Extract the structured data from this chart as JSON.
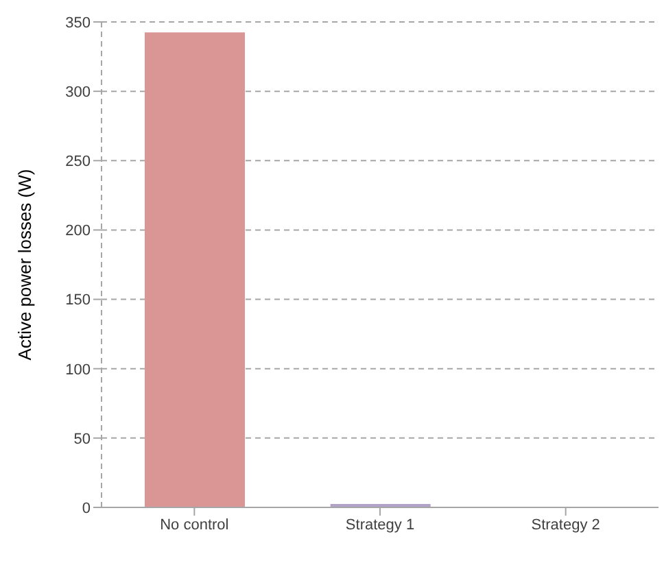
{
  "chart_data": {
    "type": "bar",
    "ylabel": "Active power losses (W)",
    "categories": [
      "No control",
      "Strategy 1",
      "Strategy 2"
    ],
    "values": [
      341,
      1,
      0
    ],
    "colors": [
      "#d99694",
      "#b3a2c7",
      "#9bbb59"
    ],
    "ylim": [
      0,
      350
    ],
    "yticks": [
      0,
      50,
      100,
      150,
      200,
      250,
      300,
      350
    ],
    "grid": "y"
  }
}
